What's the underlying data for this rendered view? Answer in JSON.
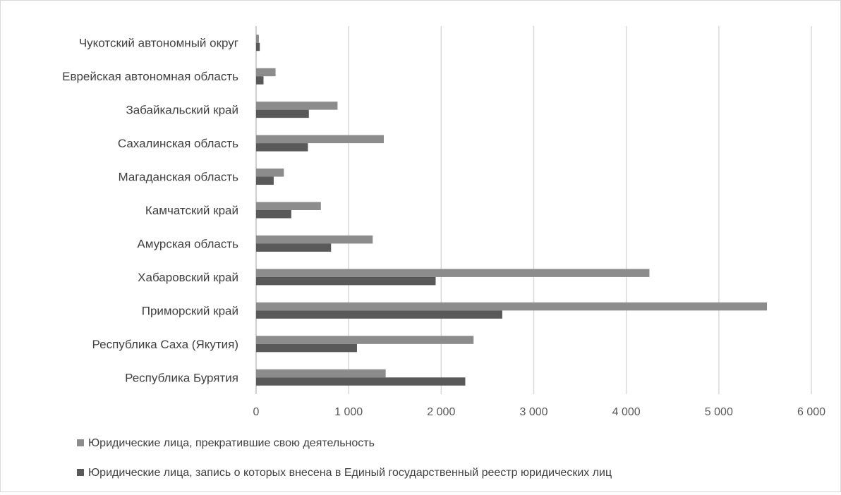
{
  "chart_data": {
    "type": "bar",
    "orientation": "horizontal",
    "categories": [
      "Республика Бурятия",
      "Республика Саха (Якутия)",
      "Приморский край",
      "Хабаровский край",
      "Амурская область",
      "Камчатский край",
      "Магаданская область",
      "Сахалинская область",
      "Забайкальский край",
      "Еврейская автономная область",
      "Чукотский автономный округ"
    ],
    "series": [
      {
        "name": "Юридические лица, прекратившие свою деятельность",
        "color": "#8c8c8c",
        "values": [
          1400,
          2350,
          5520,
          4250,
          1260,
          700,
          300,
          1380,
          880,
          210,
          30
        ]
      },
      {
        "name": "Юридические лица, запись о которых внесена в Единый государственный реестр юридических лиц",
        "color": "#595959",
        "values": [
          2260,
          1090,
          2660,
          1940,
          810,
          380,
          190,
          560,
          570,
          80,
          40
        ]
      }
    ],
    "xlim": [
      0,
      6000
    ],
    "xticks": [
      0,
      1000,
      2000,
      3000,
      4000,
      5000,
      6000
    ],
    "xtick_labels": [
      "0",
      "1 000",
      "2 000",
      "3 000",
      "4 000",
      "5 000",
      "6 000"
    ],
    "grid": "vertical",
    "legend_position": "bottom-left",
    "title": "",
    "xlabel": "",
    "ylabel": ""
  }
}
